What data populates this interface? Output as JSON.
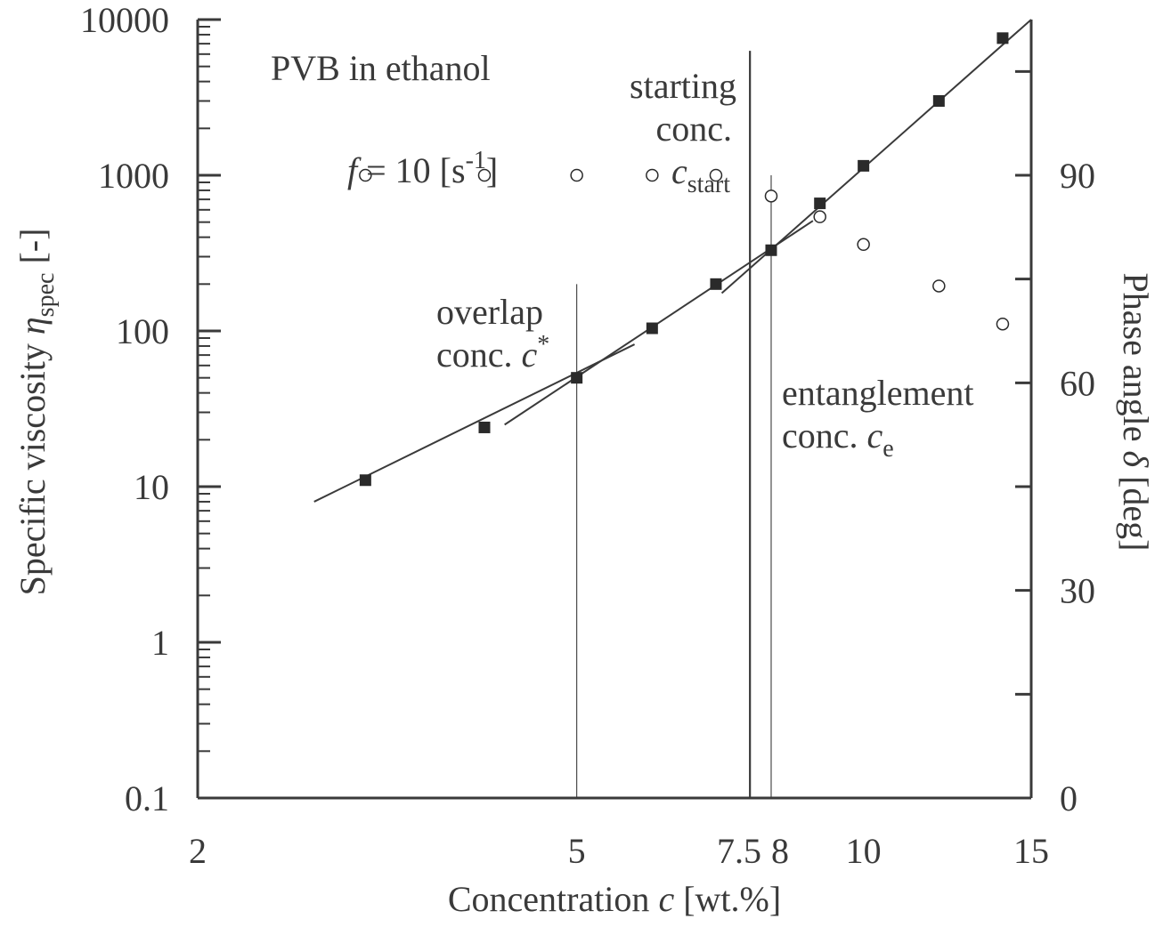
{
  "chart_data": {
    "type": "scatter",
    "title": "PVB in ethanol",
    "x_axis": {
      "label_prefix": "Concentration ",
      "label_var": "c",
      "label_suffix": " [wt.%]",
      "scale": "log",
      "range": [
        2,
        15
      ],
      "tick_labels": [
        {
          "value": 2,
          "label": "2"
        },
        {
          "value": 5,
          "label": "5"
        },
        {
          "value": 7.5,
          "label": "7.5"
        },
        {
          "value": 8,
          "label": "8"
        },
        {
          "value": 10,
          "label": "10"
        },
        {
          "value": 15,
          "label": "15"
        }
      ]
    },
    "y_axis_left": {
      "label_prefix": "Specific viscosity ",
      "label_var": "η",
      "label_sub": "spec",
      "label_suffix": " [-]",
      "scale": "log",
      "range": [
        0.1,
        10000
      ],
      "tick_labels": [
        {
          "value": 0.1,
          "label": "0.1"
        },
        {
          "value": 1,
          "label": "1"
        },
        {
          "value": 10,
          "label": "10"
        },
        {
          "value": 100,
          "label": "100"
        },
        {
          "value": 1000,
          "label": "1000"
        },
        {
          "value": 10000,
          "label": "10000"
        }
      ]
    },
    "y_axis_right": {
      "label_prefix": "Phase angle ",
      "label_var": "δ",
      "label_suffix": " [deg]",
      "scale": "linear",
      "range": [
        0,
        112.5
      ],
      "major_ticks": [
        0,
        15,
        30,
        45,
        60,
        75,
        90,
        105
      ],
      "tick_labels": [
        {
          "value": 0,
          "label": "0"
        },
        {
          "value": 30,
          "label": "30"
        },
        {
          "value": 60,
          "label": "60"
        },
        {
          "value": 90,
          "label": "90"
        }
      ]
    },
    "series": [
      {
        "name": "Specific viscosity",
        "marker": "filled-square",
        "axis": "left",
        "points": [
          {
            "x": 3,
            "y": 11
          },
          {
            "x": 4,
            "y": 24
          },
          {
            "x": 5,
            "y": 50
          },
          {
            "x": 6,
            "y": 104
          },
          {
            "x": 7,
            "y": 200
          },
          {
            "x": 8,
            "y": 330
          },
          {
            "x": 9,
            "y": 660
          },
          {
            "x": 10,
            "y": 1150
          },
          {
            "x": 12,
            "y": 3000
          },
          {
            "x": 14,
            "y": 7600
          }
        ]
      },
      {
        "name": "Phase angle",
        "marker": "open-circle",
        "axis": "right",
        "points": [
          {
            "x": 3,
            "y": 90
          },
          {
            "x": 4,
            "y": 90
          },
          {
            "x": 5,
            "y": 90
          },
          {
            "x": 6,
            "y": 90
          },
          {
            "x": 7,
            "y": 90
          },
          {
            "x": 8,
            "y": 87
          },
          {
            "x": 9,
            "y": 84
          },
          {
            "x": 10,
            "y": 80
          },
          {
            "x": 12,
            "y": 74
          },
          {
            "x": 14,
            "y": 68.5
          }
        ]
      }
    ],
    "fit_lines": [
      {
        "name": "dilute regime fit",
        "from": {
          "x": 2.65,
          "y": 8
        },
        "to": {
          "x": 5.75,
          "y": 82
        }
      },
      {
        "name": "semi-dilute regime fit",
        "from": {
          "x": 4.2,
          "y": 25
        },
        "to": {
          "x": 8.85,
          "y": 510
        }
      },
      {
        "name": "entangled regime fit",
        "from": {
          "x": 7.1,
          "y": 175
        },
        "to": {
          "x": 15,
          "y": 10000
        }
      }
    ],
    "vertical_markers": [
      {
        "name": "overlap concentration",
        "x": 5,
        "y_top": 200,
        "weight": "thin"
      },
      {
        "name": "starting concentration",
        "x": 7.6,
        "y_top": 6300,
        "weight": "thick"
      },
      {
        "name": "entanglement concentration",
        "x": 8,
        "y_top": 1000,
        "weight": "thin"
      }
    ],
    "annotations": {
      "title": "PVB in ethanol",
      "freq_var": "f",
      "freq_text": " = 10 [s",
      "freq_exp": "-1",
      "freq_close": "]",
      "starting_line1": "starting",
      "starting_line2": "conc.",
      "starting_var": "c",
      "starting_sub": "start",
      "overlap_line1": "overlap",
      "overlap_line2": "conc. ",
      "overlap_var": "c",
      "overlap_sup": "*",
      "entanglement_line1": "entanglement",
      "entanglement_line2": "conc. ",
      "entanglement_var": "c",
      "entanglement_sub": "e"
    },
    "colors": {
      "axis": "#3a3a3a",
      "line": "#3a3a3a",
      "marker": "#2a2a2a"
    }
  }
}
